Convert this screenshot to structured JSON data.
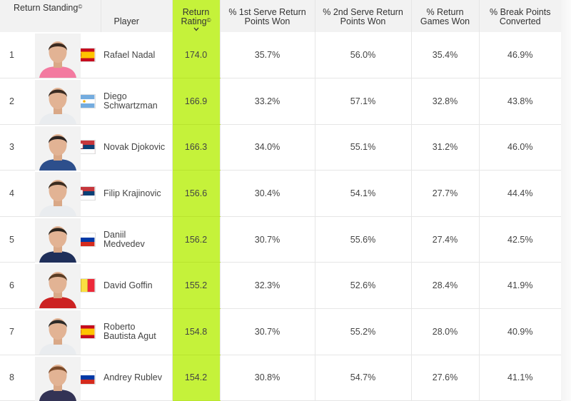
{
  "header": {
    "rank_label": "Return Standing",
    "player_label": "Player",
    "rating_label_1": "Return",
    "rating_label_2": "Rating",
    "copyright_mark": "©",
    "first_serve_1": "% 1st Serve Return",
    "first_serve_2": "Points Won",
    "second_serve_1": "% 2nd Serve Return",
    "second_serve_2": "Points Won",
    "games_1": "% Return",
    "games_2": "Games Won",
    "break_1": "% Break Points",
    "break_2": "Converted"
  },
  "colors": {
    "rating_highlight": "#c5f23a",
    "header_bg": "#f2f2f2"
  },
  "rows": [
    {
      "rank": "1",
      "name_1": "Rafael Nadal",
      "name_2": "",
      "flag": "spain-flag",
      "rating": "174.0",
      "first_serve": "35.7%",
      "second_serve": "56.0%",
      "games": "35.4%",
      "break": "46.9%"
    },
    {
      "rank": "2",
      "name_1": "Diego",
      "name_2": "Schwartzman",
      "flag": "argentina-flag",
      "rating": "166.9",
      "first_serve": "33.2%",
      "second_serve": "57.1%",
      "games": "32.8%",
      "break": "43.8%"
    },
    {
      "rank": "3",
      "name_1": "Novak Djokovic",
      "name_2": "",
      "flag": "serbia-flag",
      "rating": "166.3",
      "first_serve": "34.0%",
      "second_serve": "55.1%",
      "games": "31.2%",
      "break": "46.0%"
    },
    {
      "rank": "4",
      "name_1": "Filip Krajinovic",
      "name_2": "",
      "flag": "serbia-flag",
      "rating": "156.6",
      "first_serve": "30.4%",
      "second_serve": "54.1%",
      "games": "27.7%",
      "break": "44.4%"
    },
    {
      "rank": "5",
      "name_1": "Daniil",
      "name_2": "Medvedev",
      "flag": "russia-flag",
      "rating": "156.2",
      "first_serve": "30.7%",
      "second_serve": "55.6%",
      "games": "27.4%",
      "break": "42.5%"
    },
    {
      "rank": "6",
      "name_1": "David Goffin",
      "name_2": "",
      "flag": "belgium-flag",
      "rating": "155.2",
      "first_serve": "32.3%",
      "second_serve": "52.6%",
      "games": "28.4%",
      "break": "41.9%"
    },
    {
      "rank": "7",
      "name_1": "Roberto",
      "name_2": "Bautista Agut",
      "flag": "spain-flag",
      "rating": "154.8",
      "first_serve": "30.7%",
      "second_serve": "55.2%",
      "games": "28.0%",
      "break": "40.9%"
    },
    {
      "rank": "8",
      "name_1": "Andrey Rublev",
      "name_2": "",
      "flag": "russia-flag",
      "rating": "154.2",
      "first_serve": "30.8%",
      "second_serve": "54.7%",
      "games": "27.6%",
      "break": "41.1%"
    }
  ]
}
